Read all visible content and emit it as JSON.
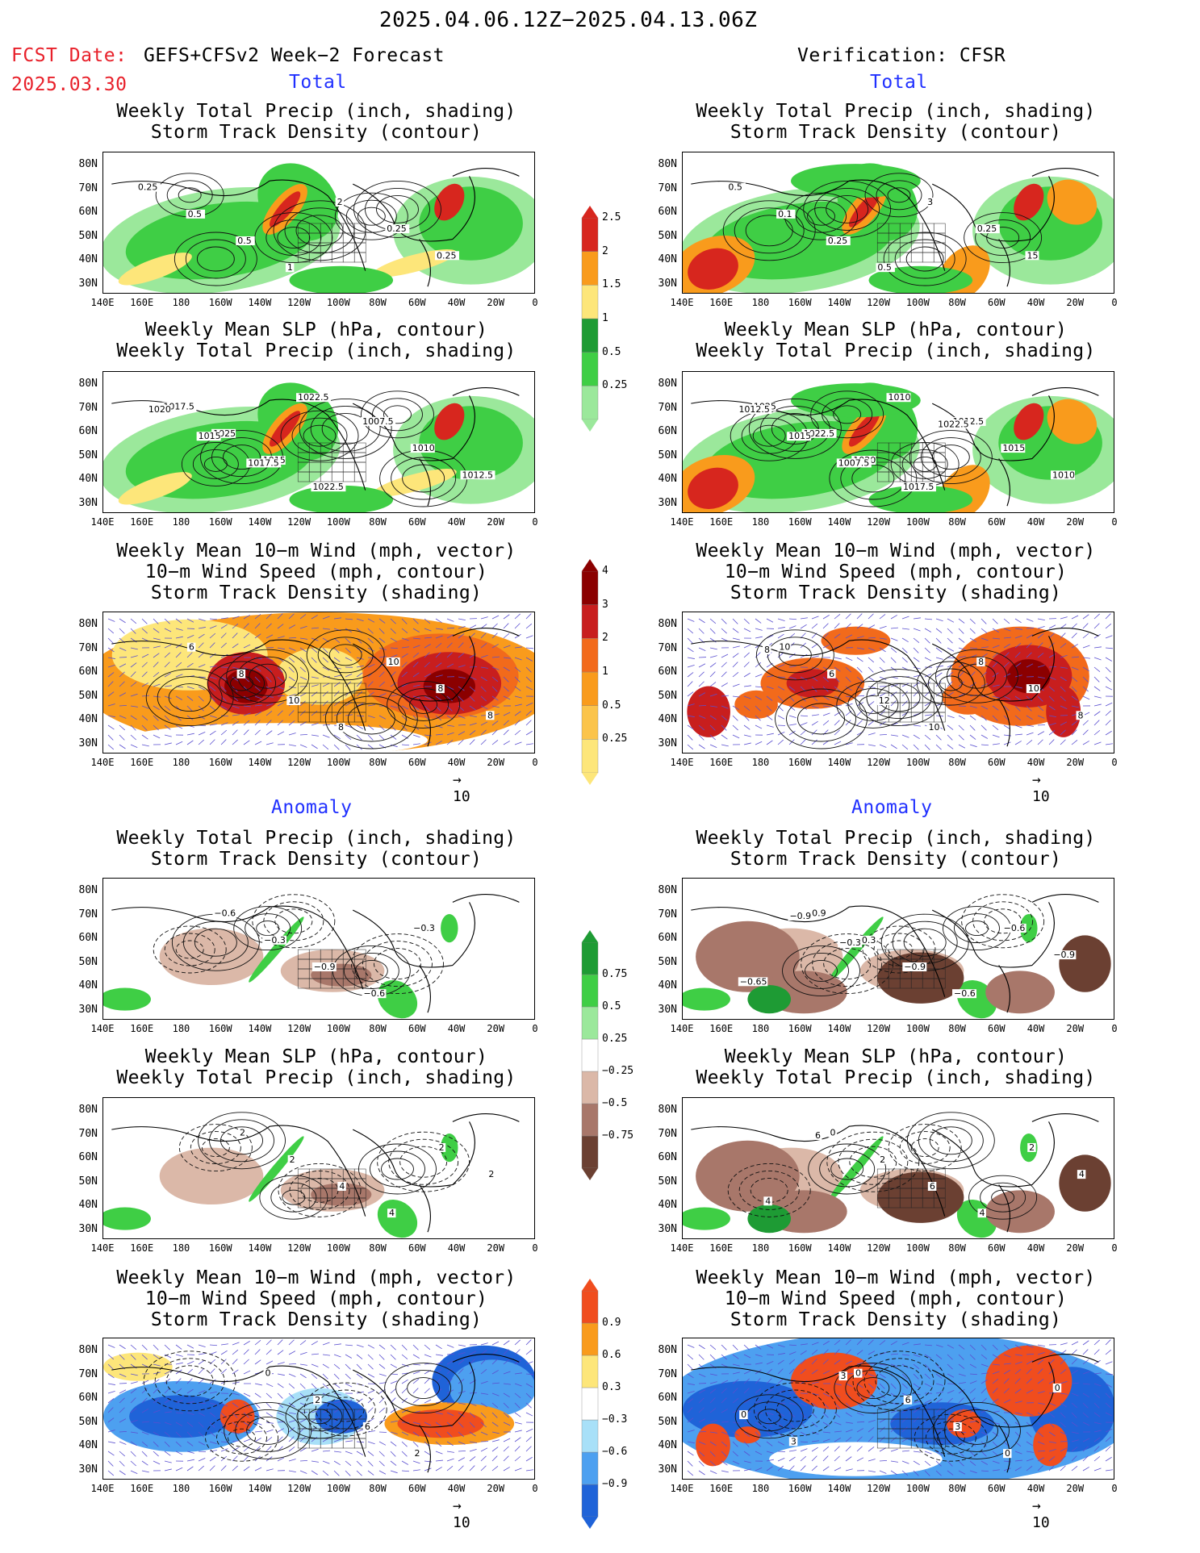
{
  "header": {
    "date_range": "2025.04.06.12Z−2025.04.13.06Z",
    "fcst_label": "FCST Date:",
    "fcst_model": "GEFS+CFSv2 Week−2 Forecast",
    "fcst_date": "2025.03.30",
    "verification": "Verification: CFSR"
  },
  "sections": {
    "total": "Total",
    "anomaly": "Anomaly"
  },
  "titles": {
    "precip_storm": [
      "Weekly Total Precip (inch, shading)",
      "Storm Track Density (contour)"
    ],
    "slp_precip": [
      "Weekly Mean SLP (hPa, contour)",
      "Weekly Total Precip (inch, shading)"
    ],
    "wind_storm": [
      "Weekly Mean 10−m Wind (mph, vector)",
      "10−m Wind Speed (mph, contour)",
      "Storm Track Density (shading)"
    ]
  },
  "axes": {
    "lat_labels": [
      "80N",
      "70N",
      "60N",
      "50N",
      "40N",
      "30N"
    ],
    "lon_labels": [
      "140E",
      "160E",
      "180",
      "160W",
      "140W",
      "120W",
      "100W",
      "80W",
      "60W",
      "40W",
      "20W",
      "0"
    ],
    "vector_ref": "10"
  },
  "colorbars": {
    "total_precip": {
      "labels": [
        "2.5",
        "2",
        "1.5",
        "1",
        "0.5",
        "0.25"
      ],
      "colors": [
        "#d7261e",
        "#f99b1c",
        "#fde67a",
        "#1e9b34",
        "#3fce45",
        "#9be89b"
      ]
    },
    "total_storm": {
      "labels": [
        "4",
        "3",
        "2",
        "1",
        "0.5",
        "0.25"
      ],
      "colors": [
        "#8b0000",
        "#c81e1e",
        "#f26a1b",
        "#f99b1c",
        "#fbc44b",
        "#fde67a"
      ]
    },
    "anom_precip": {
      "labels": [
        "0.75",
        "0.5",
        "0.25",
        "−0.25",
        "−0.5",
        "−0.75"
      ],
      "colors": [
        "#1e9b34",
        "#3fce45",
        "#9be89b",
        "#ffffff",
        "#dbb8a8",
        "#a8776a",
        "#6b4032"
      ]
    },
    "anom_storm": {
      "labels": [
        "0.9",
        "0.6",
        "0.3",
        "−0.3",
        "−0.6",
        "−0.9"
      ],
      "colors": [
        "#f04d1e",
        "#f99b1c",
        "#fde67a",
        "#ffffff",
        "#a8e0f8",
        "#4da0f0",
        "#1f63d8"
      ]
    }
  },
  "chart_data": [
    {
      "type": "heatmap",
      "panel": "forecast-total-precip-storm",
      "contour_labels": [
        "0.25",
        "0.5",
        "0.5",
        "1",
        "2",
        "0.25",
        "0.25"
      ]
    },
    {
      "type": "heatmap",
      "panel": "verification-total-precip-storm",
      "contour_labels": [
        "0.5",
        "0.1",
        "0.25",
        "0.5",
        "3",
        "0.25",
        "15"
      ]
    },
    {
      "type": "heatmap",
      "panel": "forecast-total-slp-precip",
      "contour_labels": [
        "1017.5",
        "1025",
        "1015",
        "1022.5",
        "1007.5",
        "1010",
        "1012.5",
        "1020",
        "1015",
        "1017.5",
        "1022.5"
      ]
    },
    {
      "type": "heatmap",
      "panel": "verification-total-slp-precip",
      "contour_labels": [
        "1025",
        "1022.5",
        "1020",
        "1017.5",
        "1012.5",
        "1015",
        "1010",
        "1012.5",
        "1015",
        "1007.5",
        "1010",
        "1022.5"
      ]
    },
    {
      "type": "heatmap",
      "panel": "forecast-total-wind-storm",
      "contour_labels": [
        "6",
        "8",
        "10",
        "8",
        "10",
        "8",
        "8"
      ]
    },
    {
      "type": "heatmap",
      "panel": "verification-total-wind-storm",
      "contour_labels": [
        "10",
        "6",
        "12",
        "10",
        "8",
        "10",
        "8",
        "8"
      ]
    },
    {
      "type": "heatmap",
      "panel": "forecast-anom-precip-storm",
      "contour_labels": [
        "−0.6",
        "−0.3",
        "−0.9",
        "−0.6",
        "−0.3"
      ]
    },
    {
      "type": "heatmap",
      "panel": "verification-anom-precip-storm",
      "contour_labels": [
        "−0.9",
        "−0.3",
        "−0.9",
        "−0.6",
        "−0.6",
        "−0.9",
        "−0.65",
        "−0.9",
        "−0.3"
      ]
    },
    {
      "type": "heatmap",
      "panel": "forecast-anom-slp-precip",
      "contour_labels": [
        "2",
        "2",
        "4",
        "4",
        "2",
        "2"
      ]
    },
    {
      "type": "heatmap",
      "panel": "verification-anom-slp-precip",
      "contour_labels": [
        "0",
        "2",
        "6",
        "4",
        "2",
        "4",
        "4",
        "6"
      ]
    },
    {
      "type": "heatmap",
      "panel": "forecast-anom-wind-storm",
      "contour_labels": [
        "0",
        "2",
        "6",
        "2"
      ]
    },
    {
      "type": "heatmap",
      "panel": "verification-anom-wind-storm",
      "contour_labels": [
        "0",
        "6",
        "3",
        "0",
        "0",
        "0",
        "3",
        "3"
      ]
    }
  ]
}
